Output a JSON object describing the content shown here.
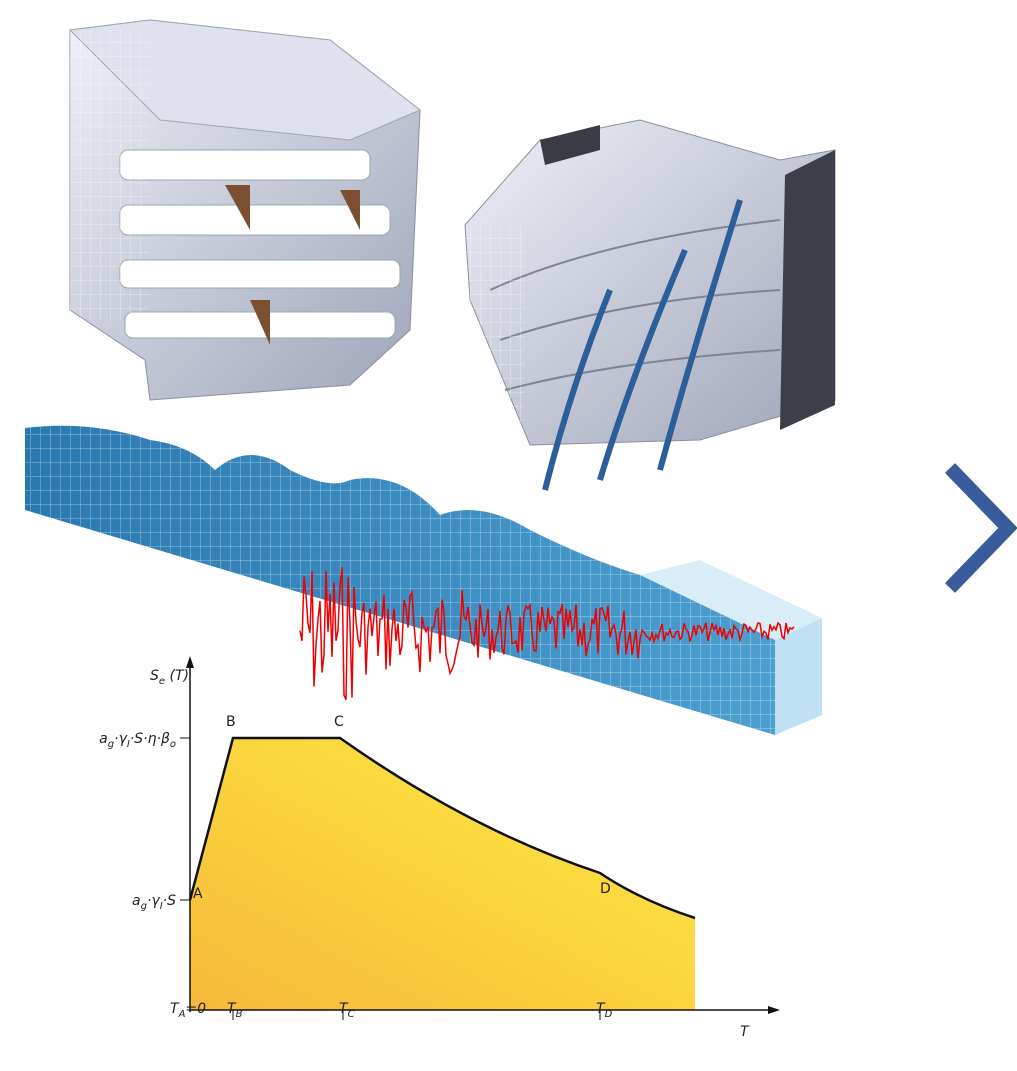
{
  "spectrum": {
    "y_axis_label": [
      "S",
      "e",
      " (T)"
    ],
    "plateau_label": [
      "a",
      "g",
      "·γ",
      "I",
      "·S·η·β",
      "o"
    ],
    "base_label": [
      "a",
      "g",
      "·γ",
      "I",
      "·S"
    ],
    "points": [
      "A",
      "B",
      "C",
      "D"
    ],
    "x_ticks": [
      [
        "T",
        "A",
        "=0"
      ],
      [
        "T",
        "B"
      ],
      [
        "T",
        "C"
      ],
      [
        "T",
        "D"
      ]
    ],
    "x_axis_label": "T"
  }
}
